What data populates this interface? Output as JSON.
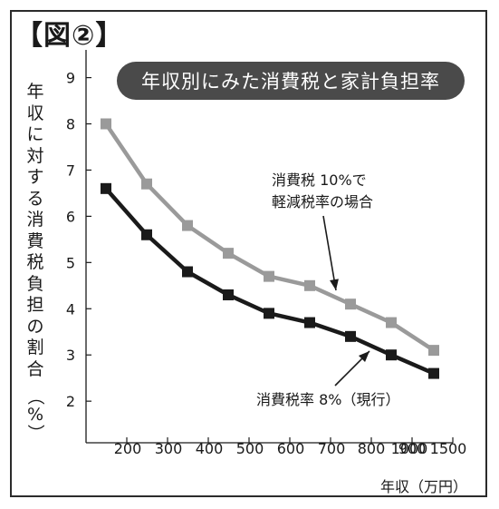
{
  "figure_label": "【図②】",
  "chart_data": {
    "type": "line",
    "title": "年収別にみた消費税と家計負担率",
    "ylabel": [
      "年",
      "収",
      "に",
      "対",
      "す",
      "る",
      "消",
      "費",
      "税",
      "負",
      "担",
      "の",
      "割",
      "合"
    ],
    "ylabel_unit": "（%）",
    "xlabel": "年収（万円）",
    "xlim": [
      100,
      1500
    ],
    "ylim": [
      1.1,
      9.6
    ],
    "x_ticks": [
      200,
      300,
      400,
      500,
      600,
      700,
      800,
      900,
      1000,
      1500
    ],
    "x_tick_labels": [
      "200",
      "300",
      "400",
      "500",
      "600",
      "700",
      "800",
      "900",
      "1000",
      "1500"
    ],
    "y_ticks": [
      2,
      3,
      4,
      5,
      6,
      7,
      8,
      9
    ],
    "y_tick_labels": [
      "2",
      "3",
      "4",
      "5",
      "6",
      "7",
      "8",
      "9"
    ],
    "x": [
      150,
      250,
      350,
      450,
      550,
      650,
      750,
      850,
      1050
    ],
    "series": [
      {
        "name": "消費税 10%で軽減税率の場合",
        "label_lines": [
          "消費税 10%で",
          "軽減税率の場合"
        ],
        "color": "#9a9a9a",
        "values": [
          8.0,
          6.7,
          5.8,
          5.2,
          4.7,
          4.5,
          4.1,
          3.7,
          3.1
        ]
      },
      {
        "name": "消費税率 8%（現行）",
        "label_lines": [
          "消費税率 8%（現行）"
        ],
        "color": "#1a1a1a",
        "values": [
          6.6,
          5.6,
          4.8,
          4.3,
          3.9,
          3.7,
          3.4,
          3.0,
          2.6
        ]
      }
    ],
    "grid": false,
    "legend": "inline annotations with arrows"
  }
}
